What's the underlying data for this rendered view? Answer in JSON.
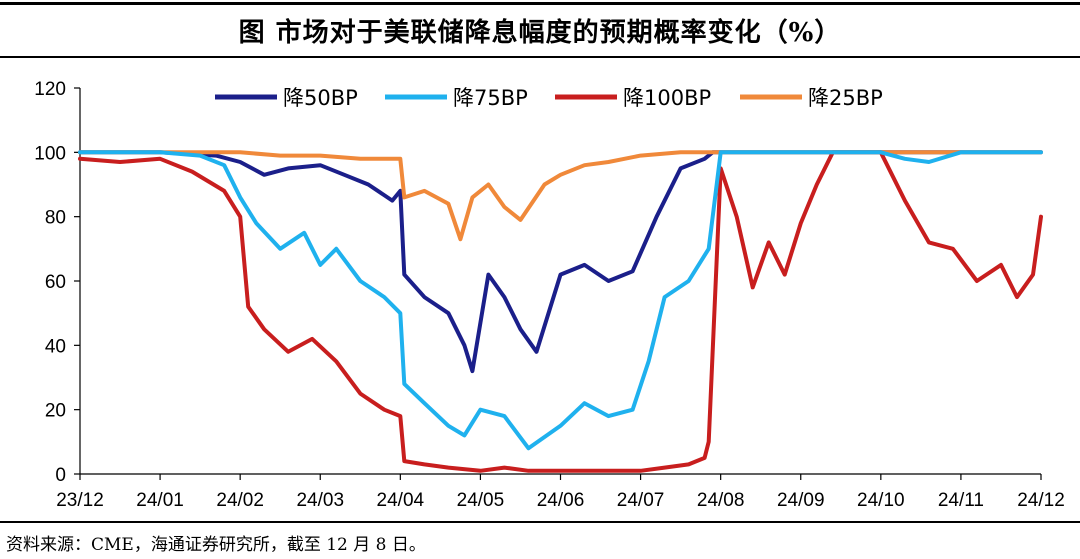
{
  "title": "图 市场对于美联储降息幅度的预期概率变化（%）",
  "source": "资料来源：CME，海通证券研究所，截至 12 月 8 日。",
  "chart_data": {
    "type": "line",
    "title": "图 市场对于美联储降息幅度的预期概率变化（%）",
    "xlabel": "",
    "ylabel": "",
    "ylim": [
      0,
      120
    ],
    "yticks": [
      0,
      20,
      40,
      60,
      80,
      100,
      120
    ],
    "xticks": [
      "23/12",
      "24/01",
      "24/02",
      "24/03",
      "24/04",
      "24/05",
      "24/06",
      "24/07",
      "24/08",
      "24/09",
      "24/10",
      "24/11",
      "24/12"
    ],
    "xlim": [
      0,
      12
    ],
    "legend_position": "top",
    "series": [
      {
        "name": "降25BP",
        "color": "#F0893A",
        "x": [
          0,
          1,
          2,
          2.5,
          3,
          3.5,
          4,
          4.05,
          4.3,
          4.6,
          4.75,
          4.9,
          5.1,
          5.3,
          5.5,
          5.8,
          6,
          6.3,
          6.6,
          7,
          7.5,
          8,
          12
        ],
        "values": [
          100,
          100,
          100,
          99,
          99,
          98,
          98,
          86,
          88,
          84,
          73,
          86,
          90,
          83,
          79,
          90,
          93,
          96,
          97,
          99,
          100,
          100,
          100
        ]
      },
      {
        "name": "降50BP",
        "color": "#1B1F8A",
        "x": [
          0,
          1,
          1.7,
          2,
          2.3,
          2.6,
          3,
          3.3,
          3.6,
          3.9,
          4,
          4.05,
          4.3,
          4.6,
          4.8,
          4.9,
          5.1,
          5.3,
          5.5,
          5.7,
          6,
          6.3,
          6.6,
          6.9,
          7.2,
          7.5,
          7.8,
          7.9,
          8,
          12
        ],
        "values": [
          100,
          100,
          99,
          97,
          93,
          95,
          96,
          93,
          90,
          85,
          88,
          62,
          55,
          50,
          40,
          32,
          62,
          55,
          45,
          38,
          62,
          65,
          60,
          63,
          80,
          95,
          98,
          100,
          100,
          100
        ]
      },
      {
        "name": "降75BP",
        "color": "#1FB1EE",
        "x": [
          0,
          1,
          1.5,
          1.8,
          2,
          2.2,
          2.5,
          2.8,
          3,
          3.2,
          3.5,
          3.8,
          4,
          4.05,
          4.3,
          4.6,
          4.8,
          5,
          5.3,
          5.6,
          6,
          6.3,
          6.6,
          6.9,
          7.1,
          7.3,
          7.6,
          7.85,
          8,
          9,
          10,
          10.3,
          10.6,
          11,
          12
        ],
        "values": [
          100,
          100,
          99,
          96,
          86,
          78,
          70,
          75,
          65,
          70,
          60,
          55,
          50,
          28,
          22,
          15,
          12,
          20,
          18,
          8,
          15,
          22,
          18,
          20,
          35,
          55,
          60,
          70,
          100,
          100,
          100,
          98,
          97,
          100,
          100
        ]
      },
      {
        "name": "降100BP",
        "color": "#C81E1E",
        "x": [
          0,
          0.5,
          1,
          1.4,
          1.8,
          2,
          2.1,
          2.3,
          2.6,
          2.9,
          3.2,
          3.5,
          3.8,
          4,
          4.05,
          4.3,
          4.6,
          5,
          5.3,
          5.6,
          6,
          6.5,
          7,
          7.3,
          7.6,
          7.8,
          7.85,
          8,
          8.2,
          8.4,
          8.6,
          8.8,
          9,
          9.2,
          9.4,
          9.6,
          10,
          10.3,
          10.6,
          10.9,
          11.2,
          11.5,
          11.7,
          11.9,
          12
        ],
        "values": [
          98,
          97,
          98,
          94,
          88,
          80,
          52,
          45,
          38,
          42,
          35,
          25,
          20,
          18,
          4,
          3,
          2,
          1,
          2,
          1,
          1,
          1,
          1,
          2,
          3,
          5,
          10,
          95,
          80,
          58,
          72,
          62,
          78,
          90,
          100,
          100,
          100,
          85,
          72,
          70,
          60,
          65,
          55,
          62,
          80
        ]
      }
    ]
  }
}
